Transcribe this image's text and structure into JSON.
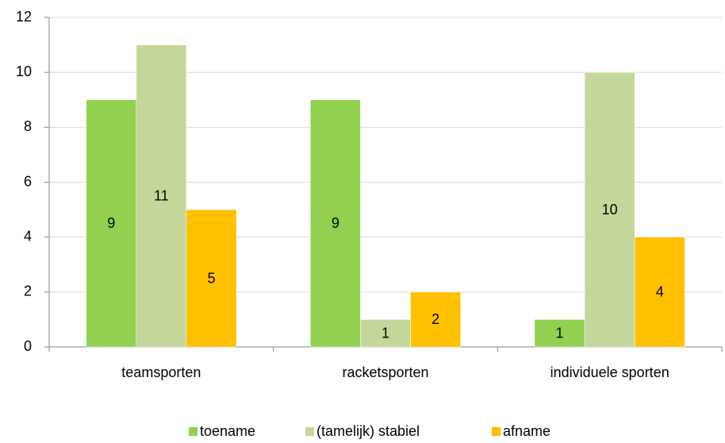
{
  "chart_data": {
    "type": "bar",
    "categories": [
      "teamsporten",
      "racketsporten",
      "individuele sporten"
    ],
    "series": [
      {
        "name": "toename",
        "color": "#92d050",
        "values": [
          9,
          9,
          1
        ]
      },
      {
        "name": "(tamelijk) stabiel",
        "color": "#c4d79b",
        "values": [
          11,
          1,
          10
        ]
      },
      {
        "name": "afname",
        "color": "#ffc000",
        "values": [
          5,
          2,
          4
        ]
      }
    ],
    "ylim": [
      0,
      12
    ],
    "yticks": [
      0,
      2,
      4,
      6,
      8,
      10,
      12
    ],
    "grid": true,
    "legend": "bottom"
  }
}
